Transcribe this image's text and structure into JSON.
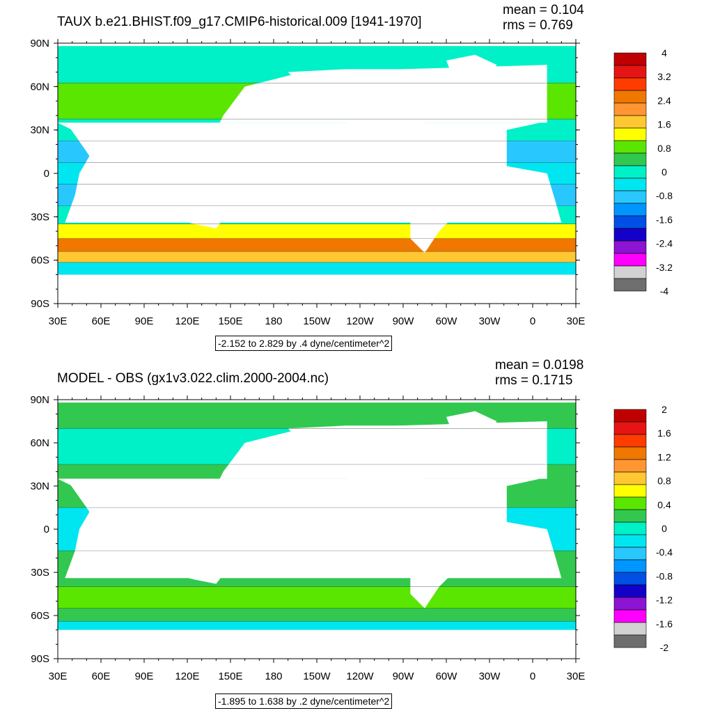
{
  "panels": [
    {
      "title": "TAUX b.e21.BHIST.f09_g17.CMIP6-historical.009 [1941-1970]",
      "stats": [
        "mean = 0.104",
        "rms = 0.769"
      ],
      "info": "-2.152 to 2.829 by .4 dyne/centimeter^2",
      "colorbar_labels": [
        "4",
        "3.2",
        "2.4",
        "1.6",
        "0.8",
        "0",
        "-0.8",
        "-1.6",
        "-2.4",
        "-3.2",
        "-4"
      ]
    },
    {
      "title": "MODEL - OBS (gx1v3.022.clim.2000-2004.nc)",
      "stats": [
        "mean = 0.0198",
        "rms = 0.1715"
      ],
      "info": "-1.895 to 1.638 by .2 dyne/centimeter^2",
      "colorbar_labels": [
        "2",
        "1.6",
        "1.2",
        "0.8",
        "0.4",
        "0",
        "-0.4",
        "-0.8",
        "-1.2",
        "-1.6",
        "-2"
      ]
    }
  ],
  "axes": {
    "y_ticks": [
      "90N",
      "60N",
      "30N",
      "0",
      "30S",
      "60S",
      "90S"
    ],
    "x_ticks": [
      "30E",
      "60E",
      "90E",
      "120E",
      "150E",
      "180",
      "150W",
      "120W",
      "90W",
      "60W",
      "30W",
      "0",
      "30E"
    ]
  },
  "colorbar_colors": [
    "#c00000",
    "#e61414",
    "#ff3c00",
    "#f07800",
    "#ff9632",
    "#ffc832",
    "#ffff00",
    "#5ae600",
    "#32c850",
    "#00f0c8",
    "#00e6f0",
    "#28c8ff",
    "#0096ff",
    "#0050e6",
    "#1400c8",
    "#8c14d2",
    "#ff00ff",
    "#d2d2d2",
    "#6e6e6e"
  ],
  "chart_data": [
    {
      "type": "heatmap",
      "title": "TAUX b.e21.BHIST.f09_g17.CMIP6-historical.009 [1941-1970]",
      "xlabel": "",
      "ylabel": "",
      "x_range": [
        "30E",
        "30E"
      ],
      "y_range": [
        "90S",
        "90N"
      ],
      "contour_min": -2.152,
      "contour_max": 2.829,
      "contour_interval": 0.4,
      "units": "dyne/centimeter^2",
      "mean": 0.104,
      "rms": 0.769,
      "colorbar_range": [
        -4,
        4
      ],
      "zonal_bands": [
        {
          "lat": 80,
          "value": 0.0
        },
        {
          "lat": 45,
          "value": 0.6
        },
        {
          "lat": 30,
          "value": -0.2
        },
        {
          "lat": 15,
          "value": -0.9
        },
        {
          "lat": 0,
          "value": -0.5
        },
        {
          "lat": -15,
          "value": -0.9
        },
        {
          "lat": -30,
          "value": -0.2
        },
        {
          "lat": -40,
          "value": 1.0
        },
        {
          "lat": -50,
          "value": 2.4
        },
        {
          "lat": -58,
          "value": 1.4
        },
        {
          "lat": -65,
          "value": -0.4
        }
      ]
    },
    {
      "type": "heatmap",
      "title": "MODEL - OBS (gx1v3.022.clim.2000-2004.nc)",
      "xlabel": "",
      "ylabel": "",
      "x_range": [
        "30E",
        "30E"
      ],
      "y_range": [
        "90S",
        "90N"
      ],
      "contour_min": -1.895,
      "contour_max": 1.638,
      "contour_interval": 0.2,
      "units": "dyne/centimeter^2",
      "mean": 0.0198,
      "rms": 0.1715,
      "colorbar_range": [
        -2,
        2
      ],
      "zonal_bands": [
        {
          "lat": 80,
          "value": 0.1
        },
        {
          "lat": 60,
          "value": -0.1
        },
        {
          "lat": 30,
          "value": 0.1
        },
        {
          "lat": 0,
          "value": -0.2
        },
        {
          "lat": -30,
          "value": 0.05
        },
        {
          "lat": -50,
          "value": 0.4
        },
        {
          "lat": -60,
          "value": 0.2
        },
        {
          "lat": -68,
          "value": -0.2
        }
      ]
    }
  ]
}
